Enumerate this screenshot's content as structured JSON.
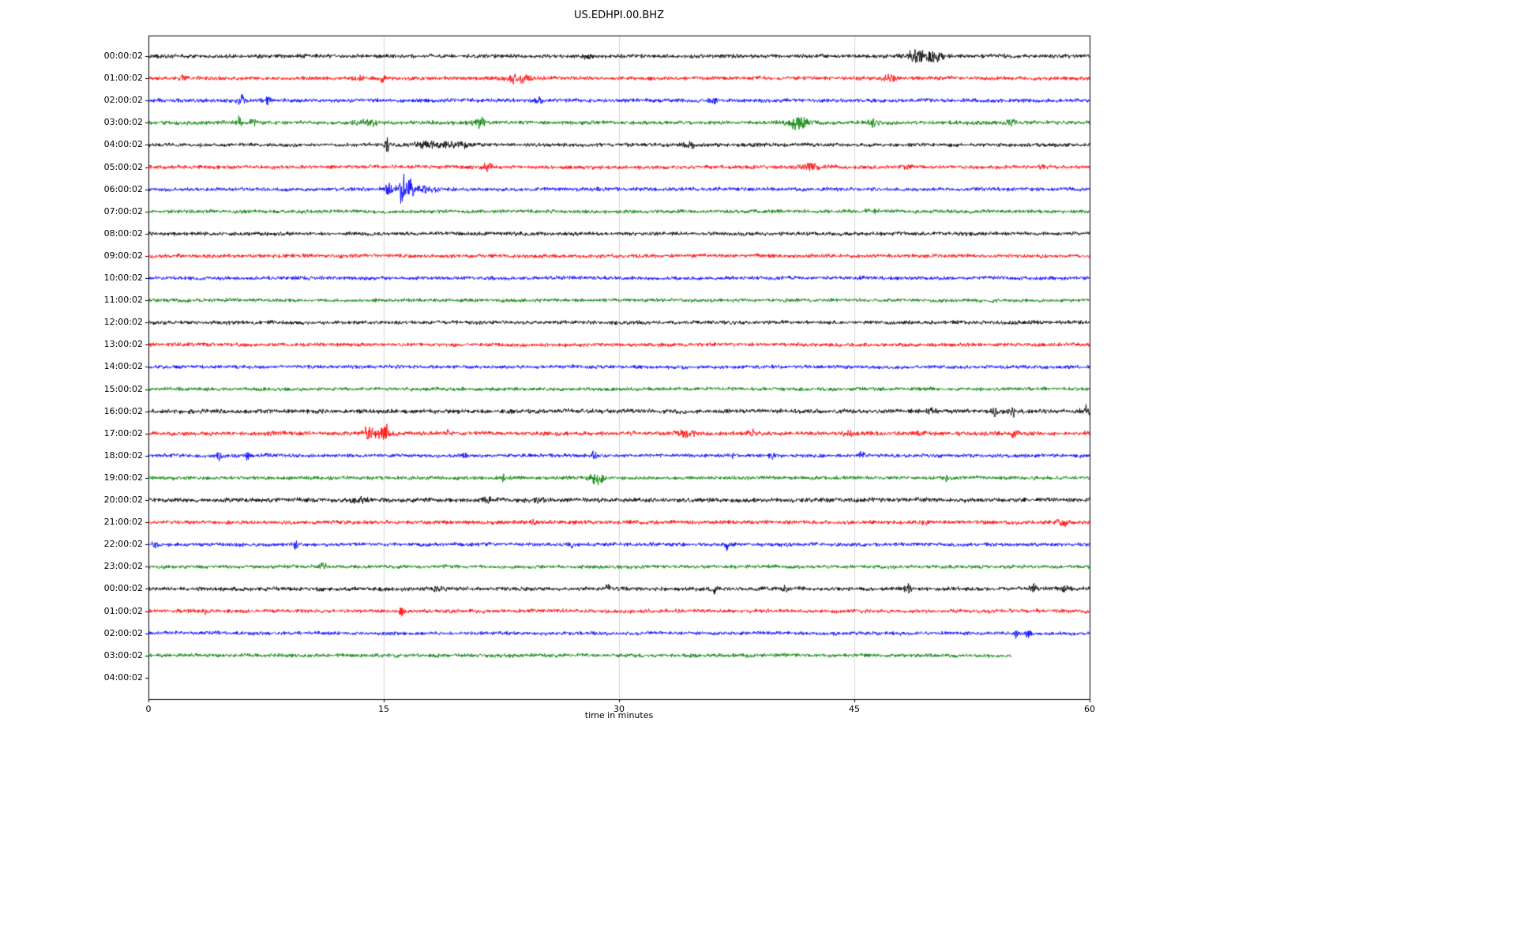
{
  "chart_data": {
    "type": "line",
    "title": "US.EDHPI.00.BHZ",
    "xlabel": "time in minutes",
    "x_range": [
      0,
      60
    ],
    "x_ticks": [
      0,
      15,
      30,
      45,
      60
    ],
    "x_tick_labels": [
      "0",
      "15",
      "30",
      "45",
      "60"
    ],
    "grid": {
      "vertical_minutes": [
        15,
        30,
        45
      ],
      "color": "#cccccc"
    },
    "axis_color": "#000000",
    "trace_color_cycle": [
      "#000000",
      "#ff0000",
      "#0000ff",
      "#008000"
    ],
    "description": "Helicorder-style seismogram, one hour per row, noise with transient event bursts; events listed as [minute, peak_amplitude_px, width_minutes]",
    "rows": [
      {
        "label": "00:00:02",
        "color": "#000000",
        "trace": true,
        "base": 2.1,
        "end": 60,
        "ev": [
          [
            28,
            2.5,
            0.25
          ],
          [
            48.9,
            4.5,
            0.5
          ],
          [
            49.6,
            5,
            0.6
          ],
          [
            50.3,
            3,
            0.4
          ]
        ]
      },
      {
        "label": "01:00:02",
        "color": "#ff0000",
        "trace": true,
        "base": 2.0,
        "end": 60,
        "ev": [
          [
            2.2,
            3.5,
            0.2
          ],
          [
            13.5,
            2,
            0.2
          ],
          [
            15.0,
            3.5,
            0.25
          ],
          [
            23.2,
            3.5,
            0.5
          ],
          [
            23.9,
            3,
            0.4
          ],
          [
            47.3,
            3,
            0.4
          ]
        ]
      },
      {
        "label": "02:00:02",
        "color": "#0000ff",
        "trace": true,
        "base": 2.0,
        "end": 60,
        "ev": [
          [
            5.9,
            4.5,
            0.25
          ],
          [
            7.6,
            3,
            0.2
          ],
          [
            24.9,
            3,
            0.2
          ],
          [
            36,
            1.5,
            0.3
          ]
        ]
      },
      {
        "label": "03:00:02",
        "color": "#008000",
        "trace": true,
        "base": 2.1,
        "end": 60,
        "ev": [
          [
            5.8,
            4.5,
            0.2
          ],
          [
            6.7,
            3.5,
            0.2
          ],
          [
            13.5,
            2.5,
            0.4
          ],
          [
            14.3,
            2.5,
            0.3
          ],
          [
            21.0,
            4.5,
            0.5
          ],
          [
            41.4,
            5,
            0.7
          ],
          [
            46.2,
            3.5,
            0.4
          ],
          [
            55,
            2,
            0.3
          ]
        ]
      },
      {
        "label": "04:00:02",
        "color": "#000000",
        "trace": true,
        "base": 2.0,
        "end": 60,
        "ev": [
          [
            15.2,
            7,
            0.15
          ],
          [
            18.0,
            2.8,
            1.2
          ],
          [
            19.8,
            3,
            0.6
          ],
          [
            34.6,
            2.2,
            0.4
          ]
        ]
      },
      {
        "label": "05:00:02",
        "color": "#ff0000",
        "trace": true,
        "base": 2.0,
        "end": 60,
        "ev": [
          [
            21.6,
            3.5,
            0.3
          ],
          [
            42.3,
            3,
            0.8
          ],
          [
            48.2,
            3,
            0.3
          ],
          [
            57,
            1.8,
            0.3
          ]
        ]
      },
      {
        "label": "06:00:02",
        "color": "#0000ff",
        "trace": true,
        "base": 2.0,
        "end": 60,
        "ev": [
          [
            15.3,
            5,
            0.3
          ],
          [
            16.1,
            16,
            0.25
          ],
          [
            16.6,
            8,
            0.3
          ],
          [
            17.5,
            3,
            0.8
          ]
        ]
      },
      {
        "label": "07:00:02",
        "color": "#008000",
        "trace": true,
        "base": 1.9,
        "end": 60,
        "ev": [
          [
            46,
            1.5,
            0.4
          ]
        ]
      },
      {
        "label": "08:00:02",
        "color": "#000000",
        "trace": true,
        "base": 2.0,
        "end": 60,
        "ev": []
      },
      {
        "label": "09:00:02",
        "color": "#ff0000",
        "trace": true,
        "base": 2.0,
        "end": 60,
        "ev": []
      },
      {
        "label": "10:00:02",
        "color": "#0000ff",
        "trace": true,
        "base": 1.9,
        "end": 60,
        "ev": []
      },
      {
        "label": "11:00:02",
        "color": "#008000",
        "trace": true,
        "base": 1.9,
        "end": 60,
        "ev": []
      },
      {
        "label": "12:00:02",
        "color": "#000000",
        "trace": true,
        "base": 2.0,
        "end": 60,
        "ev": []
      },
      {
        "label": "13:00:02",
        "color": "#ff0000",
        "trace": true,
        "base": 2.0,
        "end": 60,
        "ev": []
      },
      {
        "label": "14:00:02",
        "color": "#0000ff",
        "trace": true,
        "base": 1.9,
        "end": 60,
        "ev": []
      },
      {
        "label": "15:00:02",
        "color": "#008000",
        "trace": true,
        "base": 1.9,
        "end": 60,
        "ev": []
      },
      {
        "label": "16:00:02",
        "color": "#000000",
        "trace": true,
        "base": 2.3,
        "end": 60,
        "ev": [
          [
            50,
            2.5,
            0.3
          ],
          [
            53.9,
            5,
            0.2
          ],
          [
            55.1,
            3.5,
            0.2
          ],
          [
            59.7,
            5,
            0.3
          ]
        ]
      },
      {
        "label": "17:00:02",
        "color": "#ff0000",
        "trace": true,
        "base": 2.2,
        "end": 60,
        "ev": [
          [
            14.0,
            6,
            0.4
          ],
          [
            15.1,
            10,
            0.4
          ],
          [
            19.0,
            4.5,
            0.15
          ],
          [
            34.3,
            4,
            0.5
          ],
          [
            38.5,
            2.5,
            0.3
          ],
          [
            44.6,
            2.5,
            0.3
          ],
          [
            49,
            2,
            0.3
          ],
          [
            55.2,
            4.5,
            0.2
          ]
        ]
      },
      {
        "label": "18:00:02",
        "color": "#0000ff",
        "trace": true,
        "base": 1.9,
        "end": 60,
        "ev": [
          [
            4.5,
            4.5,
            0.15
          ],
          [
            6.3,
            3.5,
            0.15
          ],
          [
            20.1,
            3,
            0.15
          ],
          [
            28.4,
            3.5,
            0.15
          ],
          [
            37.3,
            2.2,
            0.2
          ],
          [
            39.7,
            2.2,
            0.2
          ],
          [
            45.5,
            4,
            0.2
          ],
          [
            50.4,
            2.2,
            0.2
          ]
        ]
      },
      {
        "label": "19:00:02",
        "color": "#008000",
        "trace": true,
        "base": 1.9,
        "end": 60,
        "ev": [
          [
            22.6,
            3,
            0.2
          ],
          [
            28.3,
            4,
            0.3
          ],
          [
            28.8,
            8,
            0.25
          ],
          [
            50.7,
            4.5,
            0.2
          ]
        ]
      },
      {
        "label": "20:00:02",
        "color": "#000000",
        "trace": true,
        "base": 2.4,
        "end": 60,
        "ev": [
          [
            13.5,
            2,
            0.5
          ],
          [
            21.6,
            3.5,
            0.2
          ],
          [
            24.8,
            2.5,
            0.3
          ]
        ]
      },
      {
        "label": "21:00:02",
        "color": "#ff0000",
        "trace": true,
        "base": 2.1,
        "end": 60,
        "ev": [
          [
            24.5,
            3.5,
            0.15
          ],
          [
            49.4,
            3.5,
            0.25
          ],
          [
            58.2,
            4,
            0.3
          ]
        ]
      },
      {
        "label": "22:00:02",
        "color": "#0000ff",
        "trace": true,
        "base": 2.0,
        "end": 60,
        "ev": [
          [
            0.4,
            4,
            0.2
          ],
          [
            9.4,
            3.5,
            0.2
          ],
          [
            27,
            1.8,
            0.3
          ],
          [
            36.9,
            5,
            0.1
          ]
        ]
      },
      {
        "label": "23:00:02",
        "color": "#008000",
        "trace": true,
        "base": 1.9,
        "end": 60,
        "ev": [
          [
            11.1,
            2.5,
            0.3
          ]
        ]
      },
      {
        "label": "00:00:02",
        "color": "#000000",
        "trace": true,
        "base": 2.1,
        "end": 60,
        "ev": [
          [
            18.5,
            2.2,
            0.3
          ],
          [
            29.3,
            2.8,
            0.2
          ],
          [
            36.1,
            3.5,
            0.15
          ],
          [
            40.6,
            2.8,
            0.2
          ],
          [
            48.4,
            3.5,
            0.25
          ],
          [
            56.5,
            3,
            0.3
          ],
          [
            58.5,
            2.8,
            0.3
          ]
        ]
      },
      {
        "label": "01:00:02",
        "color": "#ff0000",
        "trace": true,
        "base": 2.0,
        "end": 60,
        "ev": [
          [
            3.6,
            2.2,
            0.2
          ],
          [
            16.2,
            4.5,
            0.2
          ]
        ]
      },
      {
        "label": "02:00:02",
        "color": "#0000ff",
        "trace": true,
        "base": 1.9,
        "end": 60,
        "ev": [
          [
            55.3,
            6,
            0.12
          ],
          [
            56.1,
            3.5,
            0.15
          ]
        ]
      },
      {
        "label": "03:00:02",
        "color": "#008000",
        "trace": true,
        "base": 2.0,
        "end": 55,
        "ev": []
      },
      {
        "label": "04:00:02",
        "color": null,
        "trace": false,
        "base": 0,
        "end": 0,
        "ev": []
      }
    ]
  }
}
